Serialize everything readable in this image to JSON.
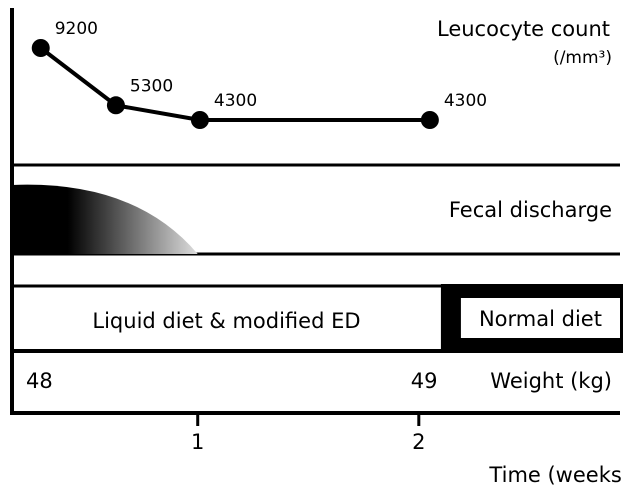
{
  "chart_data": {
    "type": "line",
    "title": "Leucocyte count",
    "unit": "(/mm³)",
    "x": [
      0.29,
      0.63,
      1.01,
      2.05
    ],
    "values": [
      9200,
      5300,
      4300,
      4300
    ],
    "xlabel": "Time (weeks)",
    "xlim": [
      0.16,
      2.91
    ],
    "xticks": [
      1,
      2
    ],
    "color": "#000000"
  },
  "fecal": {
    "label": "Fecal discharge",
    "end": 1.0
  },
  "diet": {
    "switch": 2.1,
    "phases": [
      "Liquid diet & modified ED",
      "Normal diet"
    ]
  },
  "weight": {
    "label": "Weight (kg)",
    "values": [
      48,
      49
    ]
  }
}
